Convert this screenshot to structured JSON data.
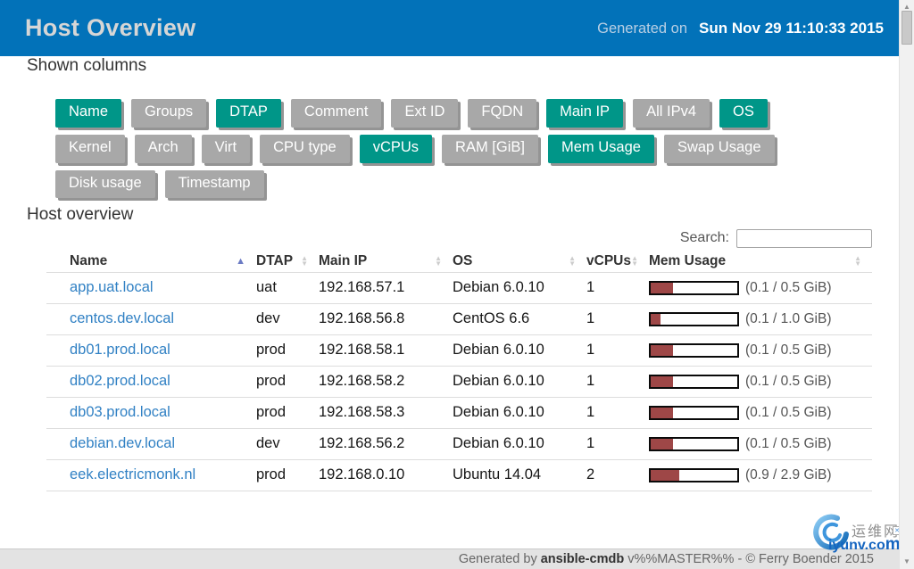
{
  "colors": {
    "header_bg": "#0272b9",
    "accent_teal": "#009688",
    "inactive_gray": "#a8a8a8",
    "button_shadow": "#949494",
    "bar_fill": "#9e4747",
    "link_blue": "#3181c4"
  },
  "header": {
    "title": "Host Overview",
    "generated_label": "Generated on",
    "generated_date": "Sun Nov 29 11:10:33 2015"
  },
  "columns_panel": {
    "heading": "Shown columns",
    "button_rows": [
      [
        {
          "label": "Name",
          "active": true
        },
        {
          "label": "Groups",
          "active": false
        },
        {
          "label": "DTAP",
          "active": true
        },
        {
          "label": "Comment",
          "active": false
        },
        {
          "label": "Ext ID",
          "active": false
        },
        {
          "label": "FQDN",
          "active": false
        },
        {
          "label": "Main IP",
          "active": true
        },
        {
          "label": "All IPv4",
          "active": false
        },
        {
          "label": "OS",
          "active": true
        }
      ],
      [
        {
          "label": "Kernel",
          "active": false
        },
        {
          "label": "Arch",
          "active": false
        },
        {
          "label": "Virt",
          "active": false
        },
        {
          "label": "CPU type",
          "active": false
        },
        {
          "label": "vCPUs",
          "active": true
        },
        {
          "label": "RAM [GiB]",
          "active": false
        },
        {
          "label": "Mem Usage",
          "active": true
        },
        {
          "label": "Swap Usage",
          "active": false
        }
      ],
      [
        {
          "label": "Disk usage",
          "active": false
        },
        {
          "label": "Timestamp",
          "active": false
        }
      ]
    ]
  },
  "table_section": {
    "heading": "Host overview",
    "search_label": "Search:",
    "search_value": "",
    "columns": [
      {
        "label": "Name",
        "sort": "asc"
      },
      {
        "label": "DTAP",
        "sort": "none"
      },
      {
        "label": "Main IP",
        "sort": "none"
      },
      {
        "label": "OS",
        "sort": "none"
      },
      {
        "label": "vCPUs",
        "sort": "none"
      },
      {
        "label": "Mem Usage",
        "sort": "none"
      }
    ],
    "rows": [
      {
        "name": "app.uat.local",
        "dtap": "uat",
        "main_ip": "192.168.57.1",
        "os": "Debian 6.0.10",
        "vcpus": "1",
        "mem_pct": 26,
        "mem_label": "(0.1 / 0.5 GiB)"
      },
      {
        "name": "centos.dev.local",
        "dtap": "dev",
        "main_ip": "192.168.56.8",
        "os": "CentOS 6.6",
        "vcpus": "1",
        "mem_pct": 11,
        "mem_label": "(0.1 / 1.0 GiB)"
      },
      {
        "name": "db01.prod.local",
        "dtap": "prod",
        "main_ip": "192.168.58.1",
        "os": "Debian 6.0.10",
        "vcpus": "1",
        "mem_pct": 26,
        "mem_label": "(0.1 / 0.5 GiB)"
      },
      {
        "name": "db02.prod.local",
        "dtap": "prod",
        "main_ip": "192.168.58.2",
        "os": "Debian 6.0.10",
        "vcpus": "1",
        "mem_pct": 26,
        "mem_label": "(0.1 / 0.5 GiB)"
      },
      {
        "name": "db03.prod.local",
        "dtap": "prod",
        "main_ip": "192.168.58.3",
        "os": "Debian 6.0.10",
        "vcpus": "1",
        "mem_pct": 26,
        "mem_label": "(0.1 / 0.5 GiB)"
      },
      {
        "name": "debian.dev.local",
        "dtap": "dev",
        "main_ip": "192.168.56.2",
        "os": "Debian 6.0.10",
        "vcpus": "1",
        "mem_pct": 26,
        "mem_label": "(0.1 / 0.5 GiB)"
      },
      {
        "name": "eek.electricmonk.nl",
        "dtap": "prod",
        "main_ip": "192.168.0.10",
        "os": "Ubuntu 14.04",
        "vcpus": "2",
        "mem_pct": 33,
        "mem_label": "(0.9 / 2.9 GiB)"
      }
    ]
  },
  "footer": {
    "prefix": "Generated by",
    "app_name": "ansible-cmdb",
    "suffix": "v%%MASTER%% - © Ferry Boender 2015"
  },
  "watermark": {
    "cn_text": "运维网",
    "site_text": "iyunv.co",
    "site_text_big": "m"
  }
}
